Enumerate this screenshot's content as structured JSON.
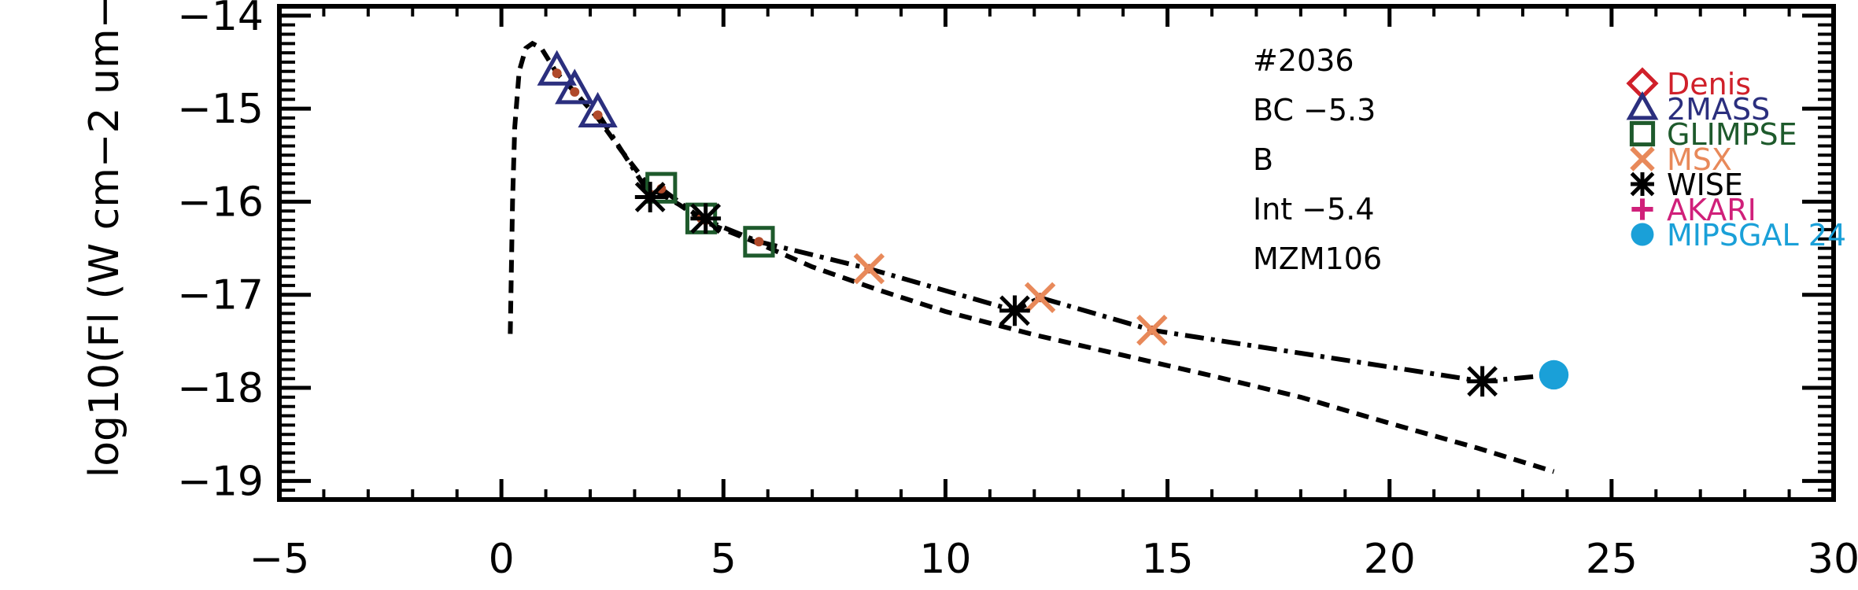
{
  "chart_data": {
    "type": "scatter",
    "ylabel": "log10(Fl (W cm−2 um−",
    "xlim": [
      -5,
      30
    ],
    "ylim": [
      -19.2,
      -13.9
    ],
    "x_ticks": [
      -5,
      0,
      5,
      10,
      15,
      20,
      25,
      30
    ],
    "x_tick_labels": [
      "−5",
      "0",
      "5",
      "10",
      "15",
      "20",
      "25",
      "30"
    ],
    "y_ticks": [
      -19,
      -18,
      -17,
      -16,
      -15,
      -14
    ],
    "y_tick_labels": [
      "−19",
      "−18",
      "−17",
      "−16",
      "−15",
      "−14"
    ],
    "annotations": [
      "#2036",
      "BC −5.3",
      "B",
      "Int −5.4",
      "MZM106"
    ],
    "legend": {
      "placement": "top-right",
      "entries": [
        {
          "name": "Denis",
          "symbol": "diamond",
          "color": "#d0202a"
        },
        {
          "name": "2MASS",
          "symbol": "triangle",
          "color": "#2b2f7e"
        },
        {
          "name": "GLIMPSE",
          "symbol": "square",
          "color": "#1e5a2c"
        },
        {
          "name": "MSX",
          "symbol": "x",
          "color": "#e8895a"
        },
        {
          "name": "WISE",
          "symbol": "asterisk",
          "color": "#000000"
        },
        {
          "name": "AKARI",
          "symbol": "plus",
          "color": "#d0207a"
        },
        {
          "name": "MIPSGAL 24",
          "symbol": "circle",
          "color": "#1aa0d8"
        }
      ]
    },
    "series": [
      {
        "source": "2MASS",
        "symbol": "triangle",
        "color": "#2b2f7e",
        "points": [
          [
            1.25,
            -14.6
          ],
          [
            1.65,
            -14.8
          ],
          [
            2.17,
            -15.05
          ]
        ]
      },
      {
        "source": "GLIMPSE",
        "symbol": "square",
        "color": "#1e5a2c",
        "points": [
          [
            3.6,
            -15.85
          ],
          [
            4.5,
            -16.18
          ],
          [
            5.8,
            -16.43
          ]
        ]
      },
      {
        "source": "MSX",
        "symbol": "x",
        "color": "#e8895a",
        "points": [
          [
            8.28,
            -16.72
          ],
          [
            12.13,
            -17.03
          ],
          [
            14.65,
            -17.38
          ]
        ]
      },
      {
        "source": "WISE",
        "symbol": "asterisk",
        "color": "#000000",
        "points": [
          [
            3.35,
            -15.95
          ],
          [
            4.6,
            -16.18
          ],
          [
            11.56,
            -17.17
          ],
          [
            22.09,
            -17.93
          ]
        ]
      },
      {
        "source": "MIPSGAL 24",
        "symbol": "circle",
        "color": "#1aa0d8",
        "points": [
          [
            23.7,
            -17.86
          ]
        ]
      }
    ],
    "curves": [
      {
        "style": "dashed",
        "color": "#000000",
        "points": [
          [
            0.2,
            -17.42
          ],
          [
            0.25,
            -16.0
          ],
          [
            0.3,
            -15.2
          ],
          [
            0.4,
            -14.6
          ],
          [
            0.55,
            -14.35
          ],
          [
            0.7,
            -14.3
          ],
          [
            0.9,
            -14.35
          ],
          [
            1.25,
            -14.62
          ],
          [
            1.65,
            -14.82
          ],
          [
            2.17,
            -15.1
          ],
          [
            2.7,
            -15.45
          ],
          [
            3.35,
            -15.85
          ],
          [
            4.0,
            -16.03
          ],
          [
            4.6,
            -16.22
          ],
          [
            5.8,
            -16.45
          ],
          [
            7.0,
            -16.7
          ],
          [
            8.5,
            -16.95
          ],
          [
            10.0,
            -17.18
          ],
          [
            12.0,
            -17.43
          ],
          [
            14.0,
            -17.65
          ],
          [
            16.0,
            -17.87
          ],
          [
            18.0,
            -18.1
          ],
          [
            20.0,
            -18.38
          ],
          [
            22.0,
            -18.65
          ],
          [
            23.7,
            -18.9
          ]
        ]
      },
      {
        "style": "dash-dot",
        "color": "#000000",
        "points": [
          [
            2.17,
            -15.05
          ],
          [
            3.35,
            -15.93
          ],
          [
            3.6,
            -15.86
          ],
          [
            4.5,
            -16.18
          ],
          [
            5.8,
            -16.43
          ],
          [
            8.28,
            -16.72
          ],
          [
            11.56,
            -17.17
          ],
          [
            12.13,
            -17.03
          ],
          [
            14.65,
            -17.38
          ],
          [
            22.09,
            -17.93
          ],
          [
            23.7,
            -17.86
          ]
        ]
      }
    ],
    "fit_points": [
      [
        1.25,
        -14.62
      ],
      [
        1.65,
        -14.82
      ],
      [
        2.17,
        -15.07
      ],
      [
        3.35,
        -15.92
      ],
      [
        3.6,
        -15.86
      ],
      [
        4.5,
        -16.18
      ],
      [
        4.6,
        -16.2
      ],
      [
        5.8,
        -16.43
      ],
      [
        8.28,
        -16.72
      ],
      [
        11.56,
        -17.17
      ],
      [
        12.13,
        -17.03
      ],
      [
        14.65,
        -17.38
      ],
      [
        22.09,
        -17.93
      ],
      [
        23.7,
        -17.86
      ]
    ],
    "fit_point_color": "#b04a2a",
    "grid": false
  }
}
